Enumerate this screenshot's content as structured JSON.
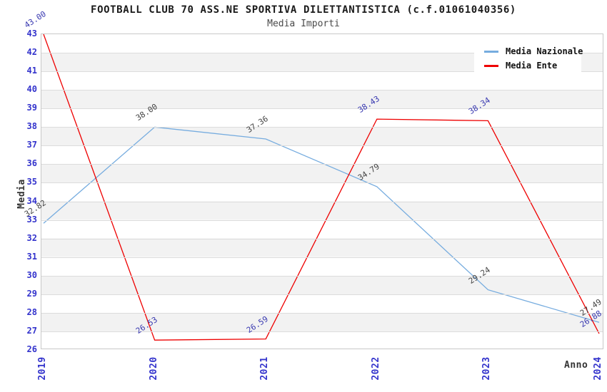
{
  "title": "FOOTBALL CLUB 70 ASS.NE SPORTIVA DILETTANTISTICA (c.f.01061040356)",
  "subtitle": "Media Importi",
  "chart_data": {
    "type": "line",
    "x": [
      2019,
      2020,
      2021,
      2022,
      2023,
      2024
    ],
    "series": [
      {
        "name": "Media Nazionale",
        "color": "#76acdf",
        "label_color": "#444444",
        "values": [
          32.82,
          38.0,
          37.36,
          34.79,
          29.24,
          27.49
        ]
      },
      {
        "name": "Media Ente",
        "color": "#ee0000",
        "label_color": "#3838b0",
        "values": [
          43.0,
          26.53,
          26.59,
          38.43,
          38.34,
          26.88
        ]
      }
    ],
    "xlabel": "Anno",
    "ylabel": "Media",
    "ylim": [
      26,
      43
    ],
    "y_tick_step": 1,
    "grid": "horizontal",
    "legend_position": "top-right",
    "colors": {
      "tick_text": "#3333cc",
      "band": "#f2f2f2",
      "gridline": "#dcdcdc",
      "plot_border": "#c8c8c8",
      "title_text": "#1a1a1a",
      "subtitle_text": "#4a4a4a"
    }
  }
}
